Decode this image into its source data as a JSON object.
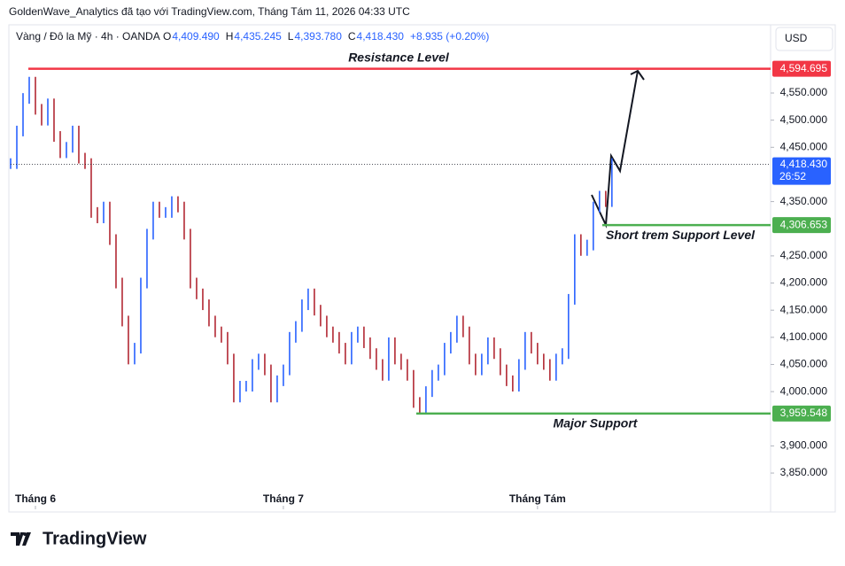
{
  "chart_data": {
    "type": "price-bars",
    "header": "GoldenWave_Analytics đã tạo với TradingView.com, Tháng Tám 11, 2026 04:33 UTC",
    "symbol": "Vàng / Đô la Mỹ · 4h · OANDA",
    "ohlc": {
      "open": "4,409.490",
      "high": "4,435.245",
      "low": "4,393.780",
      "close": "4,418.430",
      "change": "+8.935 (+0.20%)"
    },
    "ohlc_keys": {
      "open": "O",
      "high": "H",
      "low": "L",
      "close": "C"
    },
    "currency": "USD",
    "brand": "TradingView",
    "up_color": "#2962ff",
    "down_color": "#b22833",
    "values": [
      4420,
      4480,
      4540,
      4570,
      4520,
      4500,
      4530,
      4470,
      4440,
      4450,
      4480,
      4430,
      4420,
      4330,
      4320,
      4340,
      4280,
      4200,
      4130,
      4060,
      4080,
      4200,
      4290,
      4340,
      4330,
      4330,
      4350,
      4340,
      4290,
      4200,
      4180,
      4160,
      4130,
      4110,
      4100,
      4060,
      3990,
      4010,
      4010,
      4050,
      4060,
      4040,
      3990,
      4020,
      4040,
      4100,
      4120,
      4160,
      4180,
      4150,
      4130,
      4110,
      4100,
      4080,
      4060,
      4100,
      4110,
      4090,
      4070,
      4050,
      4030,
      4090,
      4060,
      4050,
      4030,
      3980,
      3970,
      4000,
      4030,
      4040,
      4080,
      4100,
      4130,
      4110,
      4060,
      4040,
      4060,
      4090,
      4070,
      4040,
      4020,
      4010,
      4050,
      4100,
      4080,
      4060,
      4050,
      4030,
      4060,
      4070,
      4170,
      4280,
      4260,
      4270,
      4340,
      4360,
      4350,
      4420
    ],
    "xlim": [
      0,
      122.6
    ],
    "xticks": [
      {
        "value": 4,
        "label": "Tháng 6"
      },
      {
        "value": 44,
        "label": "Tháng 7"
      },
      {
        "value": 85,
        "label": "Tháng Tám"
      }
    ],
    "ylim": [
      3783.2,
      4631.6
    ],
    "yticks": [
      {
        "value": 3850,
        "label": "3,850.000"
      },
      {
        "value": 3900,
        "label": "3,900.000"
      },
      {
        "value": 4000,
        "label": "4,000.000"
      },
      {
        "value": 4050,
        "label": "4,050.000"
      },
      {
        "value": 4100,
        "label": "4,100.000"
      },
      {
        "value": 4150,
        "label": "4,150.000"
      },
      {
        "value": 4200,
        "label": "4,200.000"
      },
      {
        "value": 4250,
        "label": "4,250.000"
      },
      {
        "value": 4350,
        "label": "4,350.000"
      },
      {
        "value": 4450,
        "label": "4,450.000"
      },
      {
        "value": 4500,
        "label": "4,500.000"
      },
      {
        "value": 4550,
        "label": "4,550.000"
      }
    ],
    "levels": [
      {
        "name": "Resistance Level",
        "value": 4594.695,
        "label": "4,594.695",
        "color": "#f23645"
      },
      {
        "name": "Short trem Support Level",
        "value": 4306.653,
        "label": "4,306.653",
        "color": "#4caf50"
      },
      {
        "name": "Major Support",
        "value": 3959.548,
        "label": "3,959.548",
        "color": "#4caf50"
      }
    ],
    "last_price": {
      "value": 4418.43,
      "label": "4,418.430",
      "timer": "26:52",
      "color": "#2962ff"
    }
  }
}
